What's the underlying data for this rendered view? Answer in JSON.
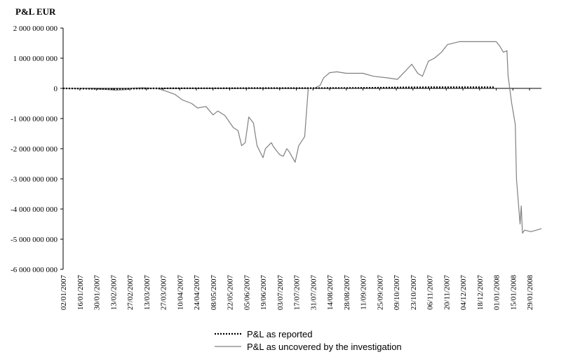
{
  "chart_data": {
    "type": "line",
    "title": "P&L EUR",
    "xlabel": "",
    "ylabel": "",
    "ylim": [
      -6000000000,
      2000000000
    ],
    "yticks": [
      2000000000,
      1000000000,
      0,
      -1000000000,
      -2000000000,
      -3000000000,
      -4000000000,
      -5000000000,
      -6000000000
    ],
    "ytick_labels": [
      "2 000 000 000",
      "1 000 000 000",
      "0",
      "-1 000 000 000",
      "-2 000 000 000",
      "-3 000 000 000",
      "-4 000 000 000",
      "-5 000 000 000",
      "-6 000 000 000"
    ],
    "x_range": [
      "2007-01-02",
      "2008-02-08"
    ],
    "x_ticks": [
      "02/01/2007",
      "16/01/2007",
      "30/01/2007",
      "13/02/2007",
      "27/02/2007",
      "13/03/2007",
      "27/03/2007",
      "10/04/2007",
      "24/04/2007",
      "08/05/2007",
      "22/05/2007",
      "05/06/2007",
      "19/06/2007",
      "03/07/2007",
      "17/07/2007",
      "31/07/2007",
      "14/08/2007",
      "28/08/2007",
      "11/09/2007",
      "25/09/2007",
      "09/10/2007",
      "23/10/2007",
      "06/11/2007",
      "20/11/2007",
      "04/12/2007",
      "18/12/2007",
      "01/01/2008",
      "15/01/2008",
      "29/01/2008"
    ],
    "grid": false,
    "legend_position": "bottom",
    "series": [
      {
        "name": "P&L as reported",
        "style": "dotted",
        "color": "#000000",
        "x": [
          "2007-01-02",
          "2007-01-20",
          "2007-02-01",
          "2007-02-15",
          "2007-03-01",
          "2007-03-20",
          "2007-04-15",
          "2007-05-15",
          "2007-06-15",
          "2007-07-15",
          "2007-08-01",
          "2007-09-01",
          "2007-10-01",
          "2007-10-20",
          "2007-11-20",
          "2007-12-20",
          "2007-12-31"
        ],
        "y": [
          0,
          -10000000,
          -15000000,
          -20000000,
          -10000000,
          0,
          5000000,
          5000000,
          10000000,
          10000000,
          10000000,
          15000000,
          25000000,
          35000000,
          40000000,
          40000000,
          40000000
        ]
      },
      {
        "name": "P&L as uncovered by the investigation",
        "style": "solid",
        "color": "#808080",
        "x": [
          "2007-01-02",
          "2007-01-20",
          "2007-02-05",
          "2007-02-15",
          "2007-02-25",
          "2007-03-01",
          "2007-03-10",
          "2007-03-22",
          "2007-03-30",
          "2007-04-06",
          "2007-04-12",
          "2007-04-20",
          "2007-04-25",
          "2007-05-02",
          "2007-05-08",
          "2007-05-12",
          "2007-05-18",
          "2007-05-25",
          "2007-05-29",
          "2007-06-01",
          "2007-06-04",
          "2007-06-07",
          "2007-06-11",
          "2007-06-14",
          "2007-06-19",
          "2007-06-21",
          "2007-06-26",
          "2007-06-28",
          "2007-07-03",
          "2007-07-06",
          "2007-07-09",
          "2007-07-11",
          "2007-07-16",
          "2007-07-19",
          "2007-07-24",
          "2007-07-27",
          "2007-08-01",
          "2007-08-06",
          "2007-08-09",
          "2007-08-14",
          "2007-08-20",
          "2007-08-28",
          "2007-09-11",
          "2007-09-20",
          "2007-10-01",
          "2007-10-10",
          "2007-10-16",
          "2007-10-22",
          "2007-10-27",
          "2007-10-31",
          "2007-11-05",
          "2007-11-10",
          "2007-11-16",
          "2007-11-21",
          "2007-12-01",
          "2007-12-15",
          "2008-01-01",
          "2008-01-04",
          "2008-01-07",
          "2008-01-10",
          "2008-01-11",
          "2008-01-14",
          "2008-01-17",
          "2008-01-18",
          "2008-01-21",
          "2008-01-22",
          "2008-01-23",
          "2008-01-25",
          "2008-01-30",
          "2008-02-04",
          "2008-02-08"
        ],
        "y": [
          0,
          -10000000,
          -30000000,
          -60000000,
          -40000000,
          10000000,
          20000000,
          0,
          -100000000,
          -200000000,
          -380000000,
          -500000000,
          -650000000,
          -600000000,
          -880000000,
          -750000000,
          -900000000,
          -1300000000,
          -1400000000,
          -1900000000,
          -1800000000,
          -950000000,
          -1150000000,
          -1900000000,
          -2300000000,
          -2000000000,
          -1800000000,
          -1950000000,
          -2200000000,
          -2250000000,
          -2000000000,
          -2100000000,
          -2450000000,
          -1900000000,
          -1600000000,
          0,
          0,
          100000000,
          350000000,
          520000000,
          550000000,
          500000000,
          500000000,
          400000000,
          350000000,
          300000000,
          550000000,
          800000000,
          500000000,
          400000000,
          900000000,
          1000000000,
          1200000000,
          1450000000,
          1550000000,
          1550000000,
          1550000000,
          1400000000,
          1200000000,
          1250000000,
          400000000,
          -500000000,
          -1200000000,
          -3000000000,
          -4500000000,
          -3900000000,
          -4800000000,
          -4700000000,
          -4750000000,
          -4700000000,
          -4650000000
        ]
      }
    ]
  }
}
